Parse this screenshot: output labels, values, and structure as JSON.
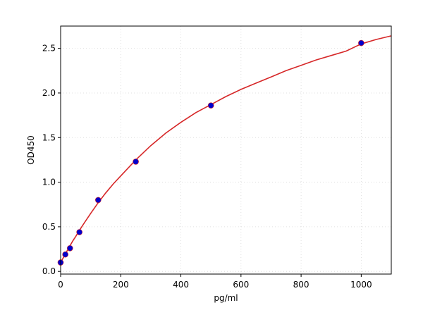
{
  "chart_data": {
    "type": "scatter",
    "title": "",
    "xlabel": "pg/ml",
    "ylabel": "OD450",
    "xlim": [
      0,
      1100
    ],
    "ylim": [
      -0.03,
      2.75
    ],
    "x_ticks": [
      0,
      200,
      400,
      600,
      800,
      1000
    ],
    "y_ticks": [
      0.0,
      0.5,
      1.0,
      1.5,
      2.0,
      2.5
    ],
    "x_tick_labels": [
      "0",
      "200",
      "400",
      "600",
      "800",
      "1000"
    ],
    "y_tick_labels": [
      "0.0",
      "0.5",
      "1.0",
      "1.5",
      "2.0",
      "2.5"
    ],
    "grid": true,
    "series": [
      {
        "kind": "points",
        "color": "#0000cc",
        "x": [
          0,
          15.6,
          31.2,
          62.5,
          125,
          250,
          500,
          1000
        ],
        "y": [
          0.1,
          0.19,
          0.26,
          0.44,
          0.8,
          1.23,
          1.86,
          2.56
        ]
      },
      {
        "kind": "fit-curve",
        "color": "#d62728",
        "x": [
          0,
          10,
          20,
          30,
          40,
          50,
          62.5,
          80,
          100,
          125,
          150,
          175,
          200,
          250,
          300,
          350,
          400,
          450,
          500,
          550,
          600,
          650,
          700,
          750,
          800,
          850,
          900,
          950,
          1000,
          1050,
          1100
        ],
        "y": [
          0.1,
          0.16,
          0.22,
          0.28,
          0.34,
          0.39,
          0.46,
          0.55,
          0.65,
          0.77,
          0.88,
          0.98,
          1.07,
          1.25,
          1.41,
          1.55,
          1.67,
          1.78,
          1.87,
          1.96,
          2.04,
          2.11,
          2.18,
          2.25,
          2.31,
          2.37,
          2.42,
          2.47,
          2.55,
          2.6,
          2.64
        ]
      }
    ]
  }
}
